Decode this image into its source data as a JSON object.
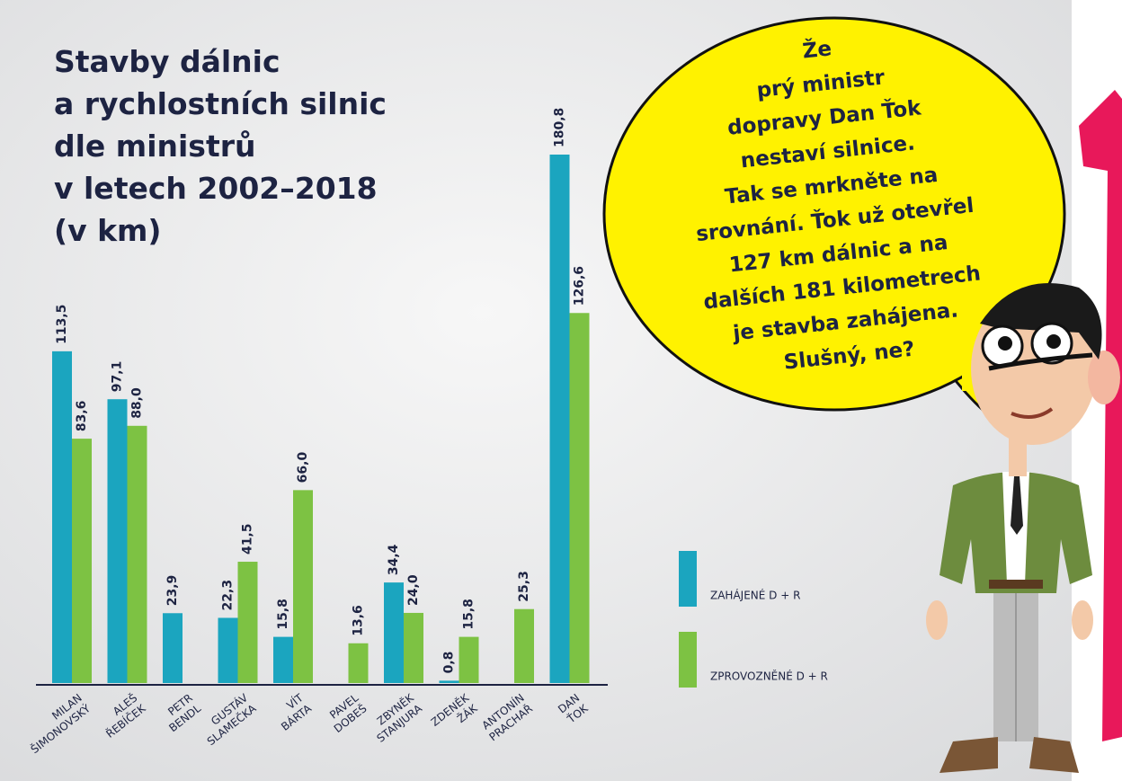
{
  "chart_data": {
    "type": "bar",
    "title": [
      "Stavby dálnic",
      "a rychlostních silnic",
      "dle ministrů",
      "v letech 2002–2018",
      "(v km)"
    ],
    "categories": [
      [
        "MILAN",
        "ŠIMONOVSKÝ"
      ],
      [
        "ALEŠ",
        "ŘEBÍČEK"
      ],
      [
        "PETR",
        "BENDL"
      ],
      [
        "GUSTÁV",
        "SLAMEČKA"
      ],
      [
        "VÍT",
        "BÁRTA"
      ],
      [
        "PAVEL",
        "DOBEŠ"
      ],
      [
        "ZBYNĚK",
        "STANJURA"
      ],
      [
        "ZDENĚK",
        "ŽÁK"
      ],
      [
        "ANTONÍN",
        "PRACHAŘ"
      ],
      [
        "DAN",
        "ŤOK"
      ]
    ],
    "series": [
      {
        "name": "ZAHÁJENÉ D + R",
        "color": "#1ba5bf",
        "values": [
          113.5,
          97.1,
          23.9,
          22.3,
          15.8,
          null,
          34.4,
          0.8,
          null,
          180.8
        ],
        "value_labels": [
          "113,5",
          "97,1",
          "23,9",
          "22,3",
          "15,8",
          null,
          "34,4",
          "0,8",
          null,
          "180,8"
        ]
      },
      {
        "name": "ZPROVOZNĚNÉ D + R",
        "color": "#7dc243",
        "values": [
          83.6,
          88.0,
          null,
          41.5,
          66.0,
          13.6,
          24.0,
          15.8,
          25.3,
          126.6
        ],
        "value_labels": [
          "83,6",
          "88,0",
          null,
          "41,5",
          "66,0",
          "13,6",
          "24,0",
          "15,8",
          "25,3",
          "126,6"
        ]
      }
    ],
    "annotation": [
      "Že",
      "prý ministr",
      "dopravy Dan Ťok",
      "nestaví silnice.",
      "Tak se mrkněte na",
      "srovnání. Ťok už otevřel",
      "127 km dálnic a na",
      "dalších 181 kilometrech",
      "je stavba zahájena.",
      "Slušný, ne?"
    ]
  }
}
